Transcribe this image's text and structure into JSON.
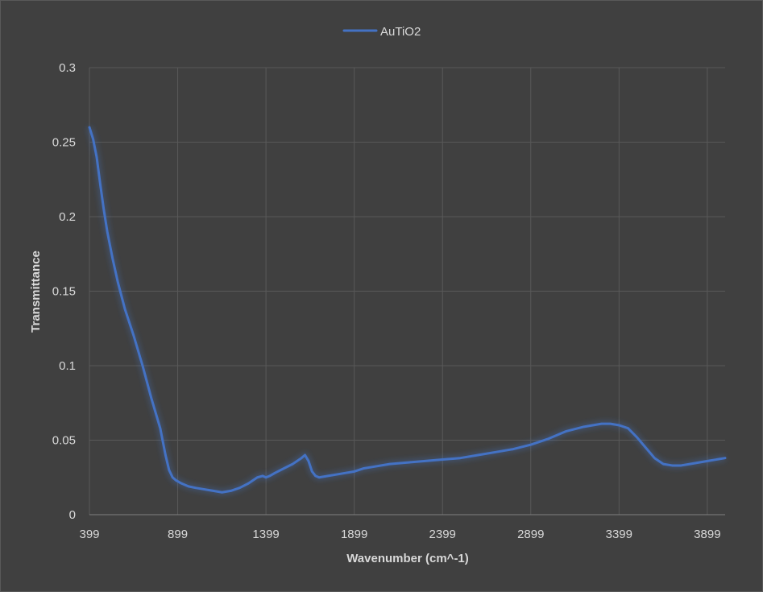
{
  "chart_data": {
    "type": "line",
    "xlabel": "Wavenumber (cm^-1)",
    "ylabel": "Transmittance",
    "xlim": [
      399,
      4000
    ],
    "ylim": [
      0,
      0.3
    ],
    "x_ticks": [
      399,
      899,
      1399,
      1899,
      2399,
      2899,
      3399,
      3899
    ],
    "y_ticks": [
      0,
      0.05,
      0.1,
      0.15,
      0.2,
      0.25,
      0.3
    ],
    "y_tick_labels": [
      "0",
      "0.05",
      "0.1",
      "0.15",
      "0.2",
      "0.25",
      "0.3"
    ],
    "grid": true,
    "legend_position": "top-center",
    "series": [
      {
        "name": "AuTiO2",
        "color": "#4472c4",
        "x": [
          399,
          420,
          440,
          460,
          480,
          500,
          530,
          560,
          600,
          650,
          700,
          750,
          800,
          830,
          850,
          870,
          890,
          920,
          960,
          1000,
          1050,
          1100,
          1150,
          1200,
          1250,
          1300,
          1350,
          1380,
          1399,
          1420,
          1450,
          1500,
          1550,
          1600,
          1620,
          1640,
          1660,
          1680,
          1700,
          1750,
          1800,
          1850,
          1900,
          1950,
          2000,
          2100,
          2200,
          2300,
          2400,
          2500,
          2600,
          2700,
          2800,
          2900,
          3000,
          3100,
          3200,
          3300,
          3350,
          3400,
          3450,
          3500,
          3550,
          3600,
          3650,
          3700,
          3750,
          3800,
          3850,
          3900,
          3950,
          4000
        ],
        "y": [
          0.26,
          0.252,
          0.24,
          0.222,
          0.205,
          0.19,
          0.172,
          0.156,
          0.138,
          0.12,
          0.1,
          0.078,
          0.058,
          0.04,
          0.03,
          0.025,
          0.023,
          0.021,
          0.019,
          0.018,
          0.017,
          0.016,
          0.015,
          0.016,
          0.018,
          0.021,
          0.025,
          0.026,
          0.025,
          0.026,
          0.028,
          0.031,
          0.034,
          0.038,
          0.04,
          0.036,
          0.029,
          0.026,
          0.025,
          0.026,
          0.027,
          0.028,
          0.029,
          0.031,
          0.032,
          0.034,
          0.035,
          0.036,
          0.037,
          0.038,
          0.04,
          0.042,
          0.044,
          0.047,
          0.051,
          0.056,
          0.059,
          0.061,
          0.061,
          0.06,
          0.058,
          0.052,
          0.045,
          0.038,
          0.034,
          0.033,
          0.033,
          0.034,
          0.035,
          0.036,
          0.037,
          0.038
        ]
      }
    ]
  }
}
